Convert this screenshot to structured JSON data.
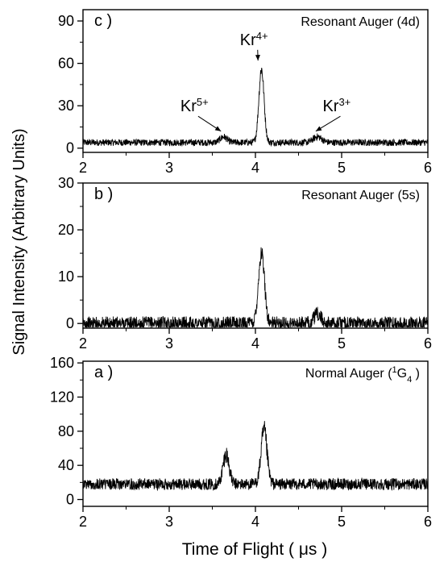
{
  "figure": {
    "ylabel": "Signal Intensity (Arbitrary Units)",
    "xlabel": "Time of Flight  ( μs )"
  },
  "chart_data": [
    {
      "type": "line",
      "panel": "c",
      "panel_label": "c )",
      "title": "Resonant Auger (4d)",
      "xlim": [
        2,
        6
      ],
      "ylim": [
        -3,
        98
      ],
      "xticks": [
        2,
        3,
        4,
        5,
        6
      ],
      "yticks": [
        0,
        30,
        60,
        90
      ],
      "baseline": 4,
      "noise": 2.2,
      "peaks": [
        {
          "x": 4.07,
          "height": 52,
          "width": 0.03
        },
        {
          "x": 3.63,
          "height": 4,
          "width": 0.04
        },
        {
          "x": 4.72,
          "height": 4,
          "width": 0.05
        }
      ],
      "annotations": [
        {
          "base": "Kr",
          "sup": "4+",
          "x": 3.82,
          "y": 73,
          "arrow_to": [
            4.03,
            62
          ]
        },
        {
          "base": "Kr",
          "sup": "5+",
          "x": 3.13,
          "y": 26,
          "arrow_to": [
            3.6,
            12
          ]
        },
        {
          "base": "Kr",
          "sup": "3+",
          "x": 4.78,
          "y": 26,
          "arrow_to": [
            4.7,
            12
          ]
        }
      ]
    },
    {
      "type": "line",
      "panel": "b",
      "panel_label": "b )",
      "title": "Resonant Auger (5s)",
      "xlim": [
        2,
        6
      ],
      "ylim": [
        -1,
        30
      ],
      "xticks": [
        2,
        3,
        4,
        5,
        6
      ],
      "yticks": [
        0,
        10,
        20,
        30
      ],
      "baseline": 0,
      "noise": 1.5,
      "peaks": [
        {
          "x": 4.07,
          "height": 15,
          "width": 0.035
        },
        {
          "x": 4.72,
          "height": 2,
          "width": 0.04
        }
      ],
      "annotations": []
    },
    {
      "type": "line",
      "panel": "a",
      "panel_label": "a )",
      "title_base": "Normal Auger (",
      "title_sup": "1",
      "title_mid": "G",
      "title_sub": "4",
      "title_end": " )",
      "xlim": [
        2,
        6
      ],
      "ylim": [
        -8,
        162
      ],
      "xticks": [
        2,
        3,
        4,
        5,
        6
      ],
      "yticks": [
        0,
        40,
        80,
        120,
        160
      ],
      "baseline": 18,
      "noise": 5,
      "peaks": [
        {
          "x": 3.66,
          "height": 35,
          "width": 0.035
        },
        {
          "x": 4.1,
          "height": 62,
          "width": 0.035
        }
      ],
      "annotations": []
    }
  ]
}
